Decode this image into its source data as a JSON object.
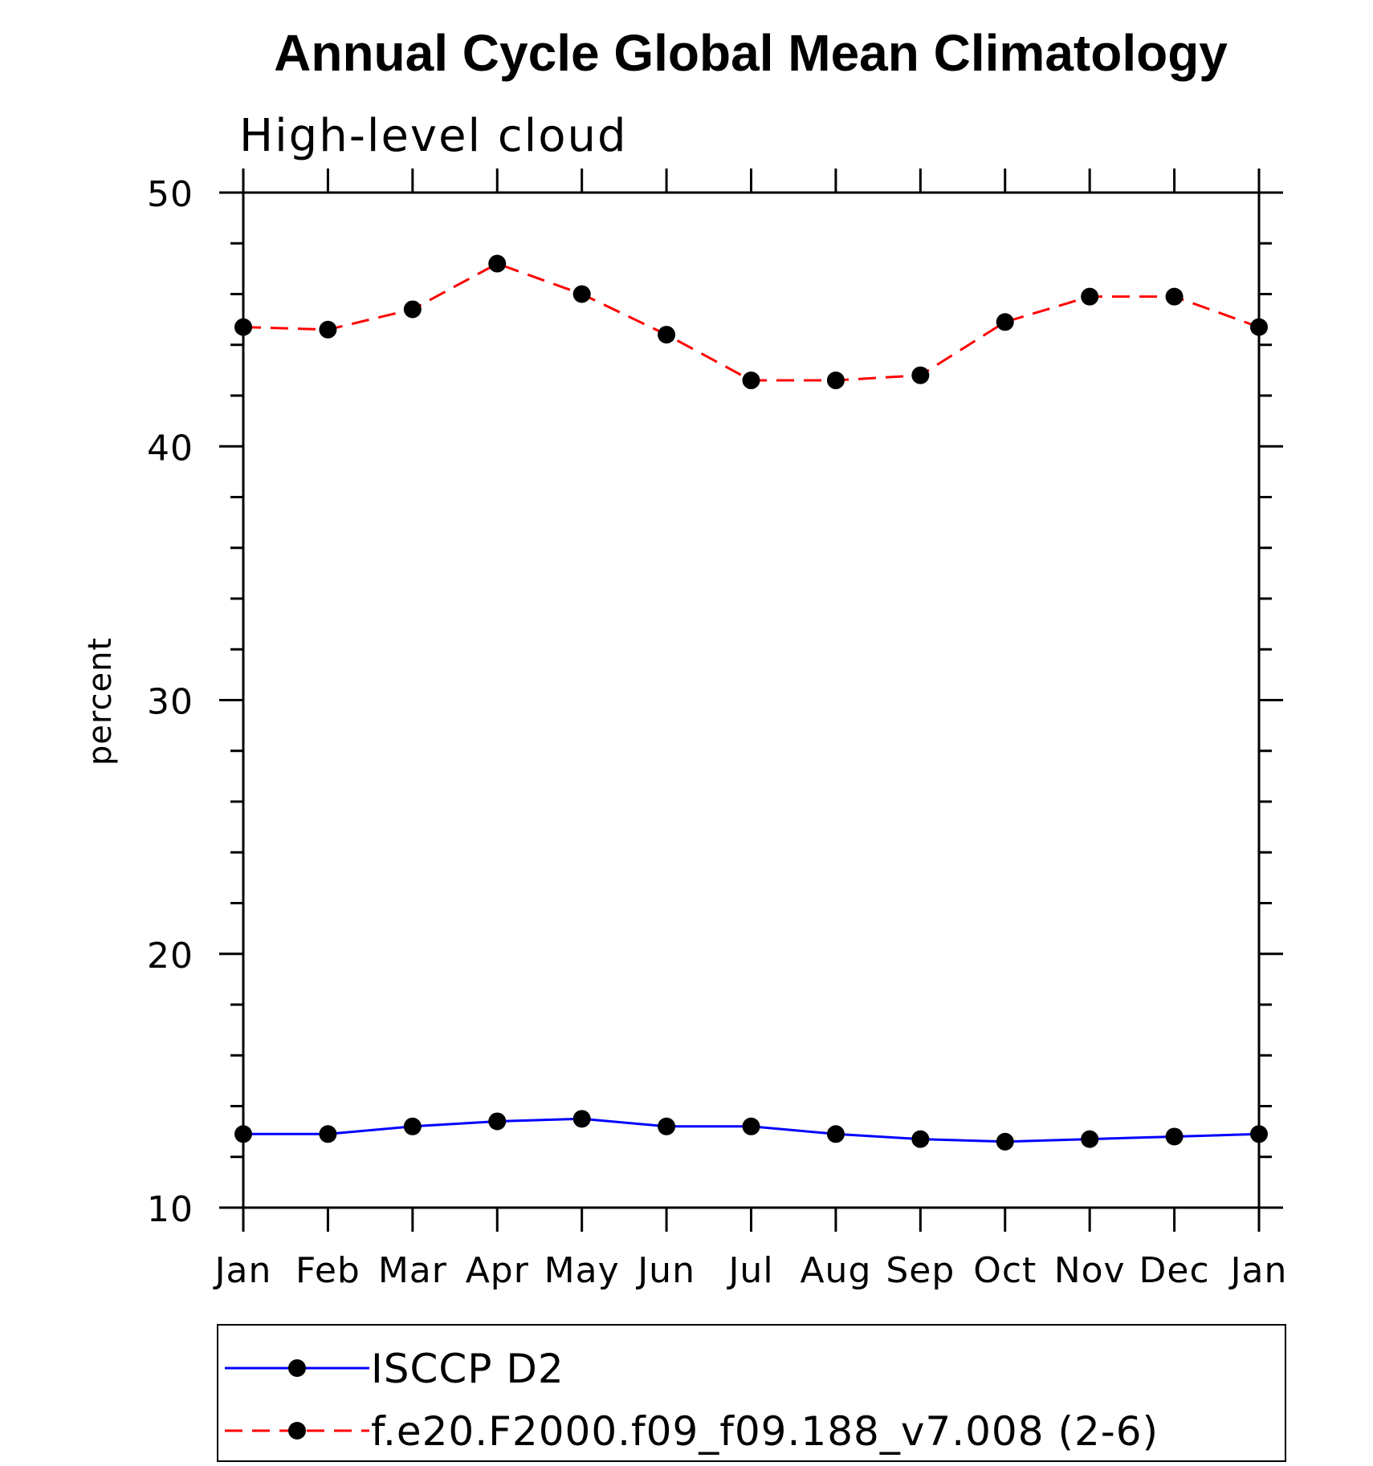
{
  "chart_data": {
    "type": "line",
    "title": "Annual Cycle Global Mean Climatology",
    "subtitle": "High-level cloud",
    "xlabel": "",
    "ylabel": "percent",
    "categories": [
      "Jan",
      "Feb",
      "Mar",
      "Apr",
      "May",
      "Jun",
      "Jul",
      "Aug",
      "Sep",
      "Oct",
      "Nov",
      "Dec",
      "Jan"
    ],
    "ylim": [
      10,
      50
    ],
    "yticks": [
      10,
      20,
      30,
      40,
      50
    ],
    "grid": false,
    "legend_position": "bottom",
    "series": [
      {
        "name": "ISCCP D2",
        "color": "#0000ff",
        "line_style": "solid",
        "marker": "filled-circle",
        "values": [
          12.9,
          12.9,
          13.2,
          13.4,
          13.5,
          13.2,
          13.2,
          12.9,
          12.7,
          12.6,
          12.7,
          12.8,
          12.9
        ]
      },
      {
        "name": "f.e20.F2000.f09_f09.188_v7.008 (2-6)",
        "color": "#ff0000",
        "line_style": "dashed",
        "marker": "filled-circle",
        "values": [
          44.7,
          44.6,
          45.4,
          47.2,
          46.0,
          44.4,
          42.6,
          42.6,
          42.8,
          44.9,
          45.9,
          45.9,
          44.7
        ]
      }
    ]
  }
}
